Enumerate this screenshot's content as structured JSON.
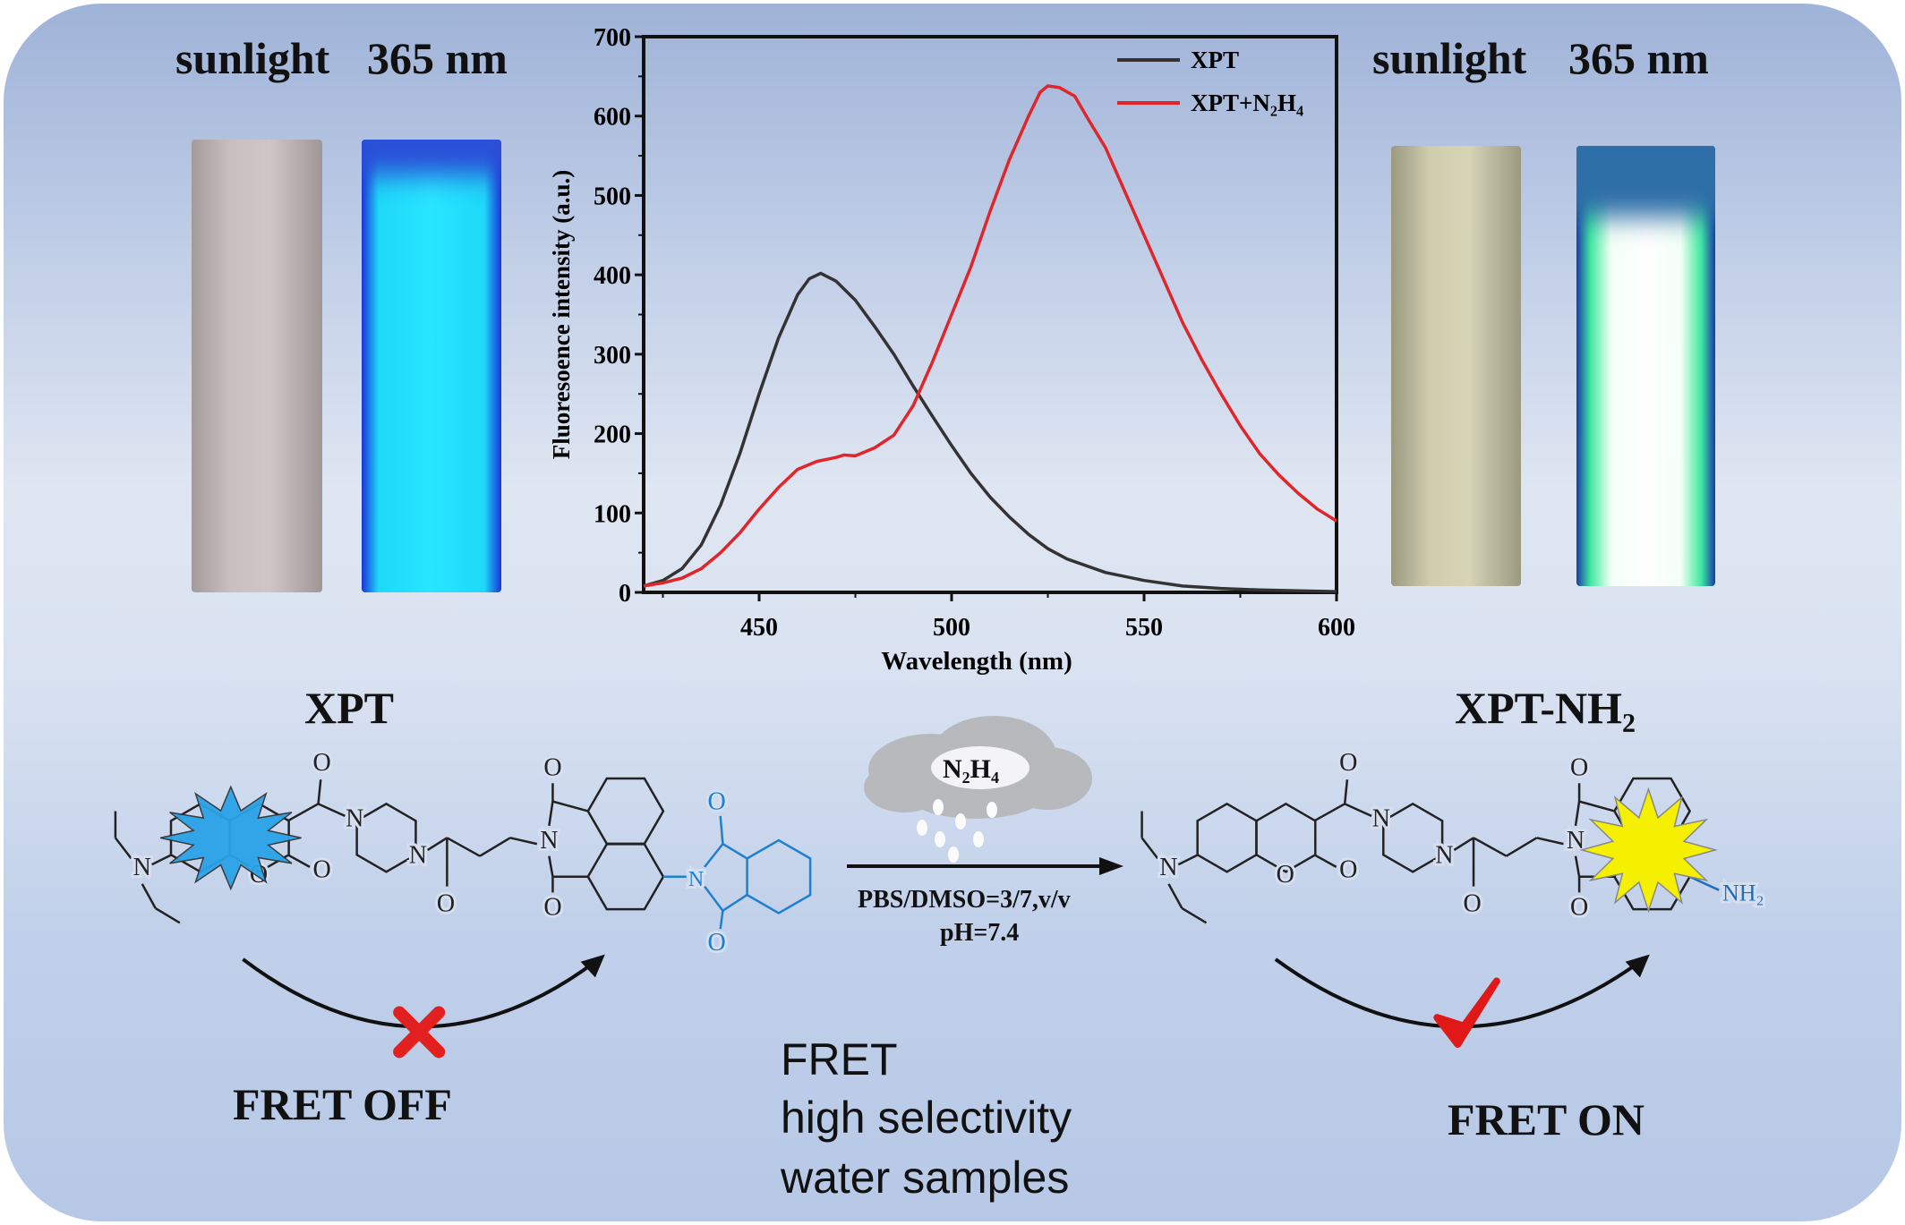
{
  "photos_left": {
    "label_sunlight": "sunlight",
    "label_uv": "365 nm"
  },
  "photos_right": {
    "label_sunlight": "sunlight",
    "label_uv": "365 nm"
  },
  "left_compound": {
    "name": "XPT",
    "fret_state": "FRET OFF",
    "atom_labels": {
      "n_amine": "N",
      "o_ring": "O",
      "o_lactone": "O",
      "o_amide1": "O",
      "n_pip1": "N",
      "n_pip2": "N",
      "o_amide2": "O",
      "o_imide_top": "O",
      "n_imide": "N",
      "o_imide_bottom": "O",
      "n_phth": "N",
      "o_phth_top": "O",
      "o_phth_bottom": "O"
    }
  },
  "right_compound": {
    "name": "XPT-NH₂",
    "fret_state": "FRET ON",
    "atom_labels": {
      "n_amine": "N",
      "o_ring": "O",
      "o_lactone": "O",
      "o_amide1": "O",
      "n_pip1": "N",
      "n_pip2": "N",
      "o_amide2": "O",
      "o_imide_top": "O",
      "n_imide": "N",
      "o_imide_bottom": "O",
      "nh2": "NH₂"
    }
  },
  "reaction": {
    "reagent": "N₂H₄",
    "conditions_line1": "PBS/DMSO=3/7,v/v",
    "conditions_line2": "pH=7.4"
  },
  "features": [
    "FRET",
    "high selectivity",
    "water samples"
  ],
  "colors": {
    "xpt": "#333333",
    "xpt_n2h4": "#e0262b",
    "burst_blue": "#2aa3e8",
    "burst_yellow": "#f5f000",
    "phthalimide": "#1f7fd0",
    "mark_x": "#e32020",
    "mark_check": "#e01818"
  },
  "chart_data": {
    "type": "line",
    "xlabel": "Wavelength (nm)",
    "ylabel": "Fluoresoence intensity (a.u.)",
    "xlim": [
      420,
      600
    ],
    "ylim": [
      0,
      700
    ],
    "xticks": [
      450,
      500,
      550,
      600
    ],
    "yticks": [
      0,
      100,
      200,
      300,
      400,
      500,
      600,
      700
    ],
    "legend_position": "top-right",
    "series": [
      {
        "name": "XPT",
        "color": "#333333",
        "x": [
          420,
          425,
          430,
          435,
          440,
          445,
          450,
          455,
          460,
          463,
          466,
          470,
          475,
          480,
          485,
          490,
          495,
          500,
          505,
          510,
          515,
          520,
          525,
          530,
          540,
          550,
          560,
          570,
          580,
          590,
          600
        ],
        "y": [
          8,
          15,
          30,
          60,
          110,
          175,
          250,
          320,
          375,
          395,
          402,
          392,
          368,
          335,
          300,
          260,
          222,
          185,
          150,
          120,
          95,
          73,
          55,
          42,
          25,
          15,
          8,
          5,
          3,
          2,
          1
        ]
      },
      {
        "name": "XPT+N₂H₄",
        "color": "#e0262b",
        "x": [
          420,
          425,
          430,
          435,
          440,
          445,
          450,
          455,
          460,
          465,
          470,
          472,
          475,
          480,
          485,
          490,
          495,
          500,
          505,
          510,
          515,
          520,
          523,
          525,
          528,
          532,
          535,
          540,
          545,
          550,
          555,
          560,
          565,
          570,
          575,
          580,
          585,
          590,
          595,
          600
        ],
        "y": [
          8,
          12,
          18,
          30,
          50,
          75,
          105,
          132,
          155,
          165,
          170,
          173,
          172,
          182,
          198,
          235,
          290,
          350,
          410,
          480,
          545,
          600,
          630,
          638,
          636,
          625,
          600,
          560,
          505,
          450,
          395,
          340,
          293,
          250,
          210,
          175,
          148,
          125,
          105,
          90
        ]
      }
    ]
  }
}
